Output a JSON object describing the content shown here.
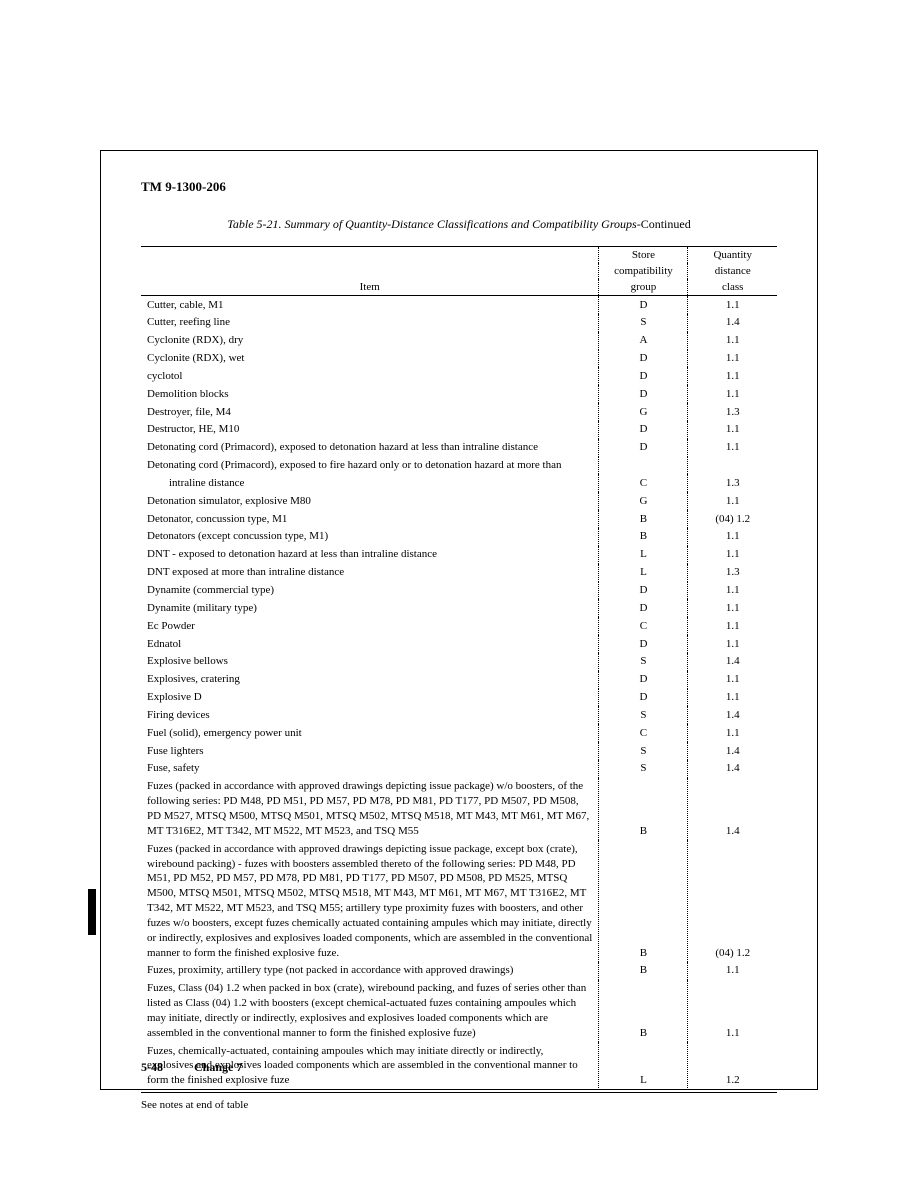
{
  "doc": {
    "tm_number": "TM 9-1300-206",
    "table_title_italic": "Table 5-21. Summary of Quantity-Distance Classifications and Compatibility Groups-",
    "table_title_cont": "Continued",
    "footnote": "See notes at end of table",
    "page_number": "5-48",
    "change": "Change 7"
  },
  "headers": {
    "item": "Item",
    "group_l1": "Store",
    "group_l2": "compatibility",
    "group_l3": "group",
    "class_l1": "Quantity",
    "class_l2": "distance",
    "class_l3": "class"
  },
  "rows": [
    {
      "item": "Cutter, cable, M1",
      "g": "D",
      "c": "1.1"
    },
    {
      "item": "Cutter, reefing line",
      "g": "S",
      "c": "1.4"
    },
    {
      "item": "Cyclonite (RDX), dry",
      "g": "A",
      "c": "1.1"
    },
    {
      "item": "Cyclonite (RDX), wet",
      "g": "D",
      "c": "1.1"
    },
    {
      "item": "cyclotol",
      "g": "D",
      "c": "1.1"
    },
    {
      "item": "Demolition blocks",
      "g": "D",
      "c": "1.1"
    },
    {
      "item": "Destroyer, file, M4",
      "g": "G",
      "c": "1.3"
    },
    {
      "item": "Destructor, HE, M10",
      "g": "D",
      "c": "1.1"
    },
    {
      "item": "Detonating cord (Primacord), exposed to detonation hazard at less than intraline distance",
      "g": "D",
      "c": "1.1"
    },
    {
      "item": "Detonating cord (Primacord), exposed to fire hazard only or to detonation hazard at more than",
      "g": "",
      "c": ""
    },
    {
      "item": "intraline distance",
      "indent": true,
      "g": "C",
      "c": "1.3"
    },
    {
      "item": "Detonation simulator, explosive M80",
      "g": "G",
      "c": "1.1"
    },
    {
      "item": "Detonator, concussion type, M1",
      "g": "B",
      "c": "(04) 1.2"
    },
    {
      "item": "Detonators (except concussion type, M1)",
      "g": "B",
      "c": "1.1"
    },
    {
      "item": "DNT - exposed to detonation hazard at less than intraline distance",
      "g": "L",
      "c": "1.1"
    },
    {
      "item": "DNT exposed at more than intraline distance",
      "g": "L",
      "c": "1.3"
    },
    {
      "item": "Dynamite (commercial type)",
      "g": "D",
      "c": "1.1"
    },
    {
      "item": "Dynamite (military type)",
      "g": "D",
      "c": "1.1"
    },
    {
      "item": "Ec Powder",
      "g": "C",
      "c": "1.1"
    },
    {
      "item": "Ednatol",
      "g": "D",
      "c": "1.1"
    },
    {
      "item": "Explosive bellows",
      "g": "S",
      "c": "1.4"
    },
    {
      "item": "Explosives, cratering",
      "g": "D",
      "c": "1.1"
    },
    {
      "item": "Explosive D",
      "g": "D",
      "c": "1.1"
    },
    {
      "item": "Firing devices",
      "g": "S",
      "c": "1.4"
    },
    {
      "item": "Fuel (solid), emergency power unit",
      "g": "C",
      "c": "1.1"
    },
    {
      "item": "Fuse lighters",
      "g": "S",
      "c": "1.4"
    },
    {
      "item": "Fuse, safety",
      "g": "S",
      "c": "1.4"
    },
    {
      "item": "Fuzes (packed in accordance with approved drawings depicting issue package) w/o boosters, of the following series: PD M48, PD M51, PD M57, PD M78, PD M81, PD T177, PD M507, PD M508, PD M527, MTSQ M500, MTSQ M501, MTSQ M502, MTSQ M518, MT M43, MT M61, MT M67, MT T316E2, MT T342, MT M522, MT M523, and TSQ M55",
      "long": true,
      "g": "B",
      "c": "1.4"
    },
    {
      "item": "Fuzes (packed in accordance with approved drawings depicting issue package, except box (crate), wirebound packing) - fuzes with boosters assembled thereto of the following series: PD M48, PD M51, PD M52, PD M57, PD M78, PD M81, PD T177, PD M507, PD M508, PD M525, MTSQ M500, MTSQ M501, MTSQ M502, MTSQ M518, MT M43, MT M61, MT M67, MT T316E2, MT T342, MT M522, MT M523, and TSQ M55; artillery type proximity fuzes with boosters, and other fuzes w/o boosters, except fuzes chemically actuated containing ampules which may initiate, directly or indirectly, explosives and explosives loaded components, which are assembled in the conventional manner to form the finished explosive fuze.",
      "long": true,
      "g": "B",
      "c": "(04) 1.2"
    },
    {
      "item": "Fuzes, proximity, artillery type (not packed in accordance with approved drawings)",
      "g": "B",
      "c": "1.1"
    },
    {
      "item": "Fuzes, Class (04) 1.2 when packed in box (crate), wirebound packing, and fuzes of series other than listed as Class (04) 1.2 with boosters (except chemical-actuated fuzes containing ampoules which may initiate, directly or indirectly, explosives and explosives loaded components which are assembled in the conventional manner to form the finished explosive fuze)",
      "long": true,
      "g": "B",
      "c": "1.1"
    },
    {
      "item": "Fuzes, chemically-actuated, containing ampoules which may initiate directly or indirectly, explosives and explosives loaded components which are assembled in the conventional manner to form the finished explosive fuze",
      "long": true,
      "g": "L",
      "c": "1.2"
    }
  ],
  "layout": {
    "col_item_pct": 72,
    "col_group_pct": 14,
    "col_class_pct": 14
  }
}
